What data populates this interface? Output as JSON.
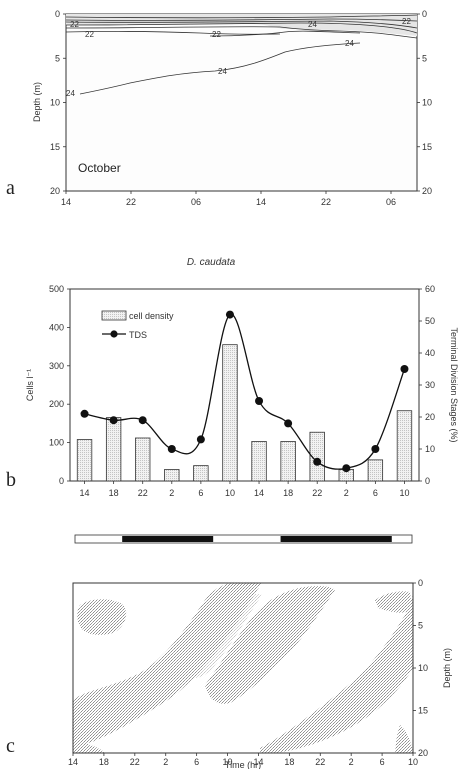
{
  "chart_data": [
    {
      "panel": "a",
      "type": "contour",
      "annotation": "October",
      "ylabel": "Depth (m)",
      "x_ticks": [
        "14",
        "22",
        "06",
        "14",
        "22",
        "06"
      ],
      "y_ticks": [
        0,
        5,
        10,
        15,
        20
      ],
      "right_ticks": [
        0,
        5,
        10,
        15,
        20
      ],
      "ylim": [
        20,
        0
      ],
      "contour_labels": [
        "22",
        "22",
        "22",
        "22",
        "24",
        "24",
        "24",
        "24"
      ]
    },
    {
      "panel": "b",
      "type": "bar",
      "title": "D. caudata",
      "ylabel": "Cells l⁻¹",
      "ylabel_right": "Terminal Division Stages (%)",
      "categories": [
        "14",
        "18",
        "22",
        "2",
        "6",
        "10",
        "14",
        "18",
        "22",
        "2",
        "6",
        "10"
      ],
      "ylim": [
        0,
        500
      ],
      "ylim_right": [
        0,
        60
      ],
      "y_ticks": [
        0,
        100,
        200,
        300,
        400,
        500
      ],
      "y_ticks_right": [
        0,
        10,
        20,
        30,
        40,
        50,
        60
      ],
      "series": [
        {
          "name": "cell density",
          "values": [
            108,
            165,
            112,
            30,
            40,
            355,
            103,
            103,
            127,
            30,
            55,
            183
          ]
        },
        {
          "name": "TDS",
          "axis": "right",
          "values": [
            21,
            19,
            19,
            10,
            13,
            52,
            25,
            18,
            6,
            4,
            10,
            35
          ]
        }
      ],
      "legend": "top-left",
      "light_bar": [
        {
          "phase": "light",
          "from": 0.0,
          "to": 0.14
        },
        {
          "phase": "dark",
          "from": 0.14,
          "to": 0.41
        },
        {
          "phase": "light",
          "from": 0.41,
          "to": 0.61
        },
        {
          "phase": "dark",
          "from": 0.61,
          "to": 0.94
        },
        {
          "phase": "light",
          "from": 0.94,
          "to": 1.0
        }
      ]
    },
    {
      "panel": "c",
      "type": "heatmap",
      "xlabel": "Time (hr)",
      "ylabel_right": "Depth (m)",
      "x_ticks": [
        "14",
        "18",
        "22",
        "2",
        "6",
        "10",
        "14",
        "18",
        "22",
        "2",
        "6",
        "10"
      ],
      "y_ticks_right": [
        0,
        5,
        10,
        15,
        20
      ],
      "ylim": [
        20,
        0
      ]
    }
  ],
  "labels": {
    "a": "a",
    "b": "b",
    "c": "c"
  }
}
